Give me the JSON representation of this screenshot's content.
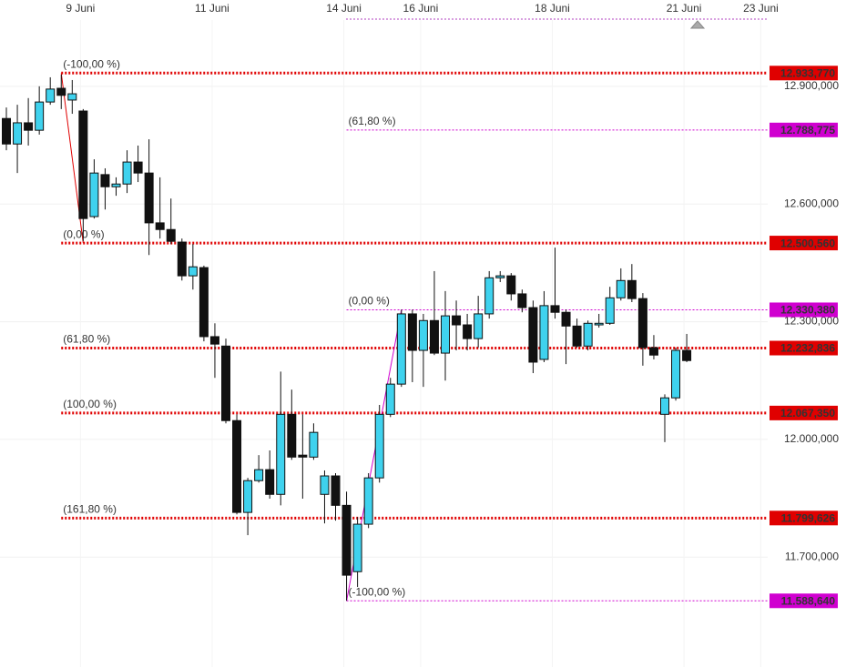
{
  "chart_data": {
    "type": "candlestick",
    "categories": [
      null,
      null,
      null,
      null,
      null,
      null,
      null,
      "9 Juni",
      null,
      null,
      null,
      null,
      null,
      null,
      null,
      null,
      null,
      null,
      null,
      "11 Juni",
      null,
      null,
      null,
      null,
      null,
      null,
      null,
      null,
      null,
      null,
      null,
      "14 Juni",
      null,
      null,
      null,
      null,
      null,
      null,
      "16 Juni",
      null,
      null,
      null,
      null,
      null,
      null,
      null,
      null,
      null,
      null,
      null,
      "18 Juni",
      null,
      null,
      null,
      null,
      null,
      null,
      null,
      null,
      null,
      null,
      null,
      "21 Juni",
      null,
      null,
      null,
      null,
      null,
      null,
      "23 Juni"
    ],
    "open": [
      12.818,
      12.753,
      12.807,
      12.788,
      12.86,
      12.895,
      12.865,
      12.837,
      12.568,
      12.675,
      12.644,
      12.651,
      12.707,
      12.679,
      12.552,
      12.535,
      12.503,
      12.417,
      12.438,
      12.262,
      12.238,
      12.048,
      11.814,
      11.895,
      11.923,
      11.86,
      12.064,
      11.96,
      11.955,
      11.86,
      11.907,
      11.832,
      11.663,
      11.784,
      11.902,
      12.064,
      12.141,
      12.32,
      12.227,
      12.303,
      12.22,
      12.315,
      12.292,
      12.257,
      12.32,
      12.412,
      12.417,
      12.371,
      12.336,
      12.204,
      12.341,
      12.324,
      12.289,
      12.238,
      12.292,
      12.296,
      12.361,
      12.405,
      12.359,
      12.234,
      12.064,
      12.106,
      12.227,
      null,
      null,
      null,
      null,
      null,
      null,
      null
    ],
    "high": [
      12.846,
      12.853,
      12.87,
      12.9,
      12.923,
      12.93,
      12.916,
      12.842,
      12.714,
      12.691,
      12.668,
      12.737,
      12.749,
      12.765,
      12.668,
      12.614,
      12.512,
      12.498,
      12.443,
      12.296,
      12.257,
      12.064,
      11.902,
      11.96,
      11.972,
      12.173,
      12.127,
      12.064,
      12.041,
      11.921,
      11.914,
      11.867,
      11.802,
      11.914,
      12.088,
      12.157,
      12.331,
      12.331,
      12.32,
      12.429,
      12.378,
      12.354,
      12.32,
      12.366,
      12.429,
      12.429,
      12.424,
      12.382,
      12.354,
      12.378,
      12.489,
      12.331,
      12.308,
      12.303,
      12.32,
      12.389,
      12.436,
      12.447,
      12.373,
      12.266,
      12.115,
      12.234,
      12.269,
      null,
      null,
      null,
      null,
      null,
      null,
      null
    ],
    "low": [
      12.737,
      12.679,
      12.749,
      12.777,
      12.853,
      12.842,
      12.83,
      12.505,
      12.563,
      12.586,
      12.621,
      12.628,
      12.656,
      12.47,
      12.512,
      12.498,
      12.405,
      12.382,
      12.25,
      12.157,
      12.041,
      11.809,
      11.756,
      11.89,
      11.849,
      11.832,
      11.948,
      11.849,
      11.948,
      11.786,
      11.793,
      11.589,
      11.624,
      11.774,
      11.89,
      12.057,
      12.134,
      12.146,
      12.134,
      12.215,
      12.15,
      12.227,
      12.227,
      12.234,
      12.308,
      12.401,
      12.354,
      12.324,
      12.169,
      12.197,
      12.308,
      12.192,
      12.234,
      12.227,
      12.285,
      12.292,
      12.354,
      12.35,
      12.188,
      12.204,
      11.993,
      12.099,
      12.197,
      null,
      null,
      null,
      null,
      null,
      null,
      null
    ],
    "close": [
      12.753,
      12.807,
      12.788,
      12.86,
      12.893,
      12.877,
      12.881,
      12.563,
      12.679,
      12.644,
      12.651,
      12.707,
      12.679,
      12.552,
      12.535,
      12.505,
      12.417,
      12.44,
      12.262,
      12.243,
      12.048,
      11.814,
      11.895,
      11.923,
      11.86,
      12.064,
      11.955,
      11.955,
      12.018,
      11.907,
      11.832,
      11.654,
      11.784,
      11.902,
      12.064,
      12.141,
      12.32,
      12.227,
      12.303,
      12.22,
      12.315,
      12.292,
      12.257,
      12.32,
      12.412,
      12.417,
      12.371,
      12.336,
      12.197,
      12.341,
      12.324,
      12.289,
      12.238,
      12.296,
      12.296,
      12.361,
      12.405,
      12.359,
      12.234,
      12.215,
      12.106,
      12.227,
      12.201,
      null,
      null,
      null,
      null,
      null,
      null,
      null
    ],
    "up_color": "#3fd2ee",
    "down_color": "#111111",
    "ylim": [
      11.42,
      13.12
    ],
    "yticks": [
      {
        "value": 12.9,
        "label": "12.900,000"
      },
      {
        "value": 12.6,
        "label": "12.600,000"
      },
      {
        "value": 12.3,
        "label": "12.300,000"
      },
      {
        "value": 12.0,
        "label": "12.000,000"
      },
      {
        "value": 11.7,
        "label": "11.700,000"
      }
    ],
    "grid": true,
    "fibonacci": [
      {
        "color": "#e00000",
        "levels": [
          {
            "value": 12.93377,
            "label": "(-100,00 %)",
            "price_label": "12.933,770"
          },
          {
            "value": 12.50056,
            "label": "(0,00 %)",
            "price_label": "12.500,560"
          },
          {
            "value": 12.232836,
            "label": "(61,80 %)",
            "price_label": "12.232,836"
          },
          {
            "value": 12.06735,
            "label": "(100,00 %)",
            "price_label": "12.067,350"
          },
          {
            "value": 11.799626,
            "label": "(161,80 %)",
            "price_label": "11.799,626"
          }
        ]
      },
      {
        "color": "#d000d0",
        "levels": [
          {
            "value": 12.788775,
            "label": "(61,80 %)",
            "price_label": "12.788,775"
          },
          {
            "value": 12.33038,
            "label": "(0,00 %)",
            "price_label": "12.330,380"
          },
          {
            "value": 11.58864,
            "label": "(-100,00 %)",
            "price_label": "11.588,640"
          }
        ]
      }
    ]
  }
}
